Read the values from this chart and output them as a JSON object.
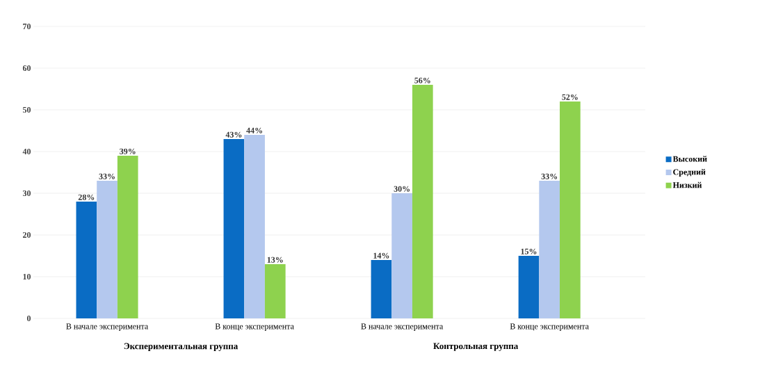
{
  "chart_data": {
    "type": "bar",
    "categories": [
      "В начале эксперимента",
      "В конце эксперимента",
      "В начале эксперимента",
      "В конце эксперимента"
    ],
    "series": [
      {
        "name": "Высокий",
        "color": "#0a6cc4",
        "values": [
          28,
          43,
          14,
          15
        ],
        "value_labels": [
          "28%",
          "43%",
          "14%",
          "15%"
        ]
      },
      {
        "name": "Средний",
        "color": "#b4c8ee",
        "values": [
          33,
          44,
          30,
          33
        ],
        "value_labels": [
          "33%",
          "44%",
          "30%",
          "33%"
        ]
      },
      {
        "name": "Низкий",
        "color": "#8ed24e",
        "values": [
          39,
          13,
          56,
          52
        ],
        "value_labels": [
          "39%",
          "13%",
          "56%",
          "52%"
        ]
      }
    ],
    "annotations": [
      "Экспериментальная группа",
      "Контрольная группа"
    ],
    "ylim": [
      0,
      70
    ],
    "yticks": [
      0,
      10,
      20,
      30,
      40,
      50,
      60,
      70
    ],
    "grid": "y",
    "legend": "right"
  }
}
